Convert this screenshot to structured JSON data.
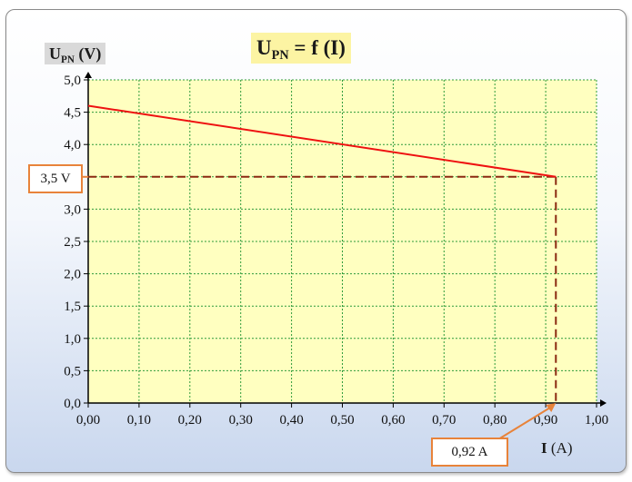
{
  "chart_data": {
    "type": "line",
    "title_main": "U",
    "title_sub": "PN",
    "title_rest": " = f (I)",
    "ylabel_main": "U",
    "ylabel_sub": "PN",
    "ylabel_rest": " (V)",
    "xlabel_main": "I",
    "xlabel_unit": " (A)",
    "xlim": [
      0,
      1
    ],
    "ylim": [
      0,
      5
    ],
    "grid": true,
    "x_ticks": [
      "0,00",
      "0,10",
      "0,20",
      "0,30",
      "0,40",
      "0,50",
      "0,60",
      "0,70",
      "0,80",
      "0,90",
      "1,00"
    ],
    "y_ticks": [
      "0,0",
      "0,5",
      "1,0",
      "1,5",
      "2,0",
      "2,5",
      "3,0",
      "3,5",
      "4,0",
      "4,5",
      "5,0"
    ],
    "series": [
      {
        "x": [
          0,
          0.92
        ],
        "y": [
          4.6,
          3.5
        ]
      }
    ],
    "marker_point": {
      "x": 0.92,
      "y": 3.5
    },
    "annotations": {
      "y_callout": "3,5 V",
      "x_callout": "0,92 A"
    },
    "colors": {
      "plot_bg": "#ffffc0",
      "grid": "#2e9b3a",
      "line": "#ee1111",
      "dashed": "#8b2a12",
      "callout_border": "#e8833a"
    }
  }
}
